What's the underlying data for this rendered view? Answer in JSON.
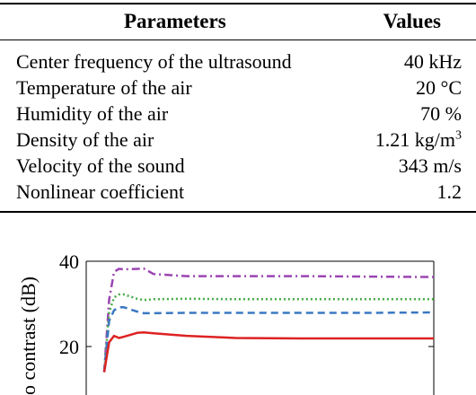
{
  "table": {
    "headers": {
      "parameter": "Parameters",
      "value": "Values"
    },
    "rows": [
      {
        "parameter": "Center frequency of the ultrasound",
        "value": "40 kHz"
      },
      {
        "parameter": "Temperature of the air",
        "value": "20 °C"
      },
      {
        "parameter": "Humidity of the air",
        "value": "70 %"
      },
      {
        "parameter": "Density of the air",
        "value": "1.21 kg/m",
        "value_sup": "3"
      },
      {
        "parameter": "Velocity of the sound",
        "value": "343 m/s"
      },
      {
        "parameter": "Nonlinear coefficient",
        "value": "1.2"
      }
    ]
  },
  "chart_data": {
    "type": "line",
    "ylabel": "o contrast (dB)",
    "xlabel": "",
    "ylim": [
      14,
      40
    ],
    "yticks": [
      20,
      40
    ],
    "ytick_labels": [
      "20",
      "40"
    ],
    "x": [
      0,
      0.15,
      0.3,
      0.45,
      0.6,
      1.0,
      1.2,
      1.5,
      2.5,
      4.0,
      6.0,
      8.0,
      10.0
    ],
    "series": [
      {
        "color": "#9b45b2",
        "style": "dashdot",
        "values": [
          14,
          31,
          37.5,
          38.2,
          38.1,
          38.2,
          38.3,
          37.0,
          36.5,
          36.5,
          36.5,
          36.4,
          36.3
        ]
      },
      {
        "color": "#44aa44",
        "style": "dotted",
        "values": [
          14,
          28,
          31.5,
          32.2,
          32.2,
          31.2,
          30.9,
          31.1,
          31.2,
          31.1,
          31.1,
          31.1,
          31.1
        ]
      },
      {
        "color": "#3a78c2",
        "style": "dashed",
        "values": [
          14,
          26,
          28.5,
          29.2,
          29.2,
          28.2,
          27.8,
          27.8,
          27.9,
          27.9,
          27.9,
          27.9,
          28.0
        ]
      },
      {
        "color": "#dd2222",
        "style": "solid",
        "values": [
          14,
          21,
          22.5,
          22.0,
          22.3,
          23.2,
          23.3,
          23.1,
          22.5,
          22.0,
          21.9,
          21.9,
          21.9
        ]
      }
    ]
  }
}
